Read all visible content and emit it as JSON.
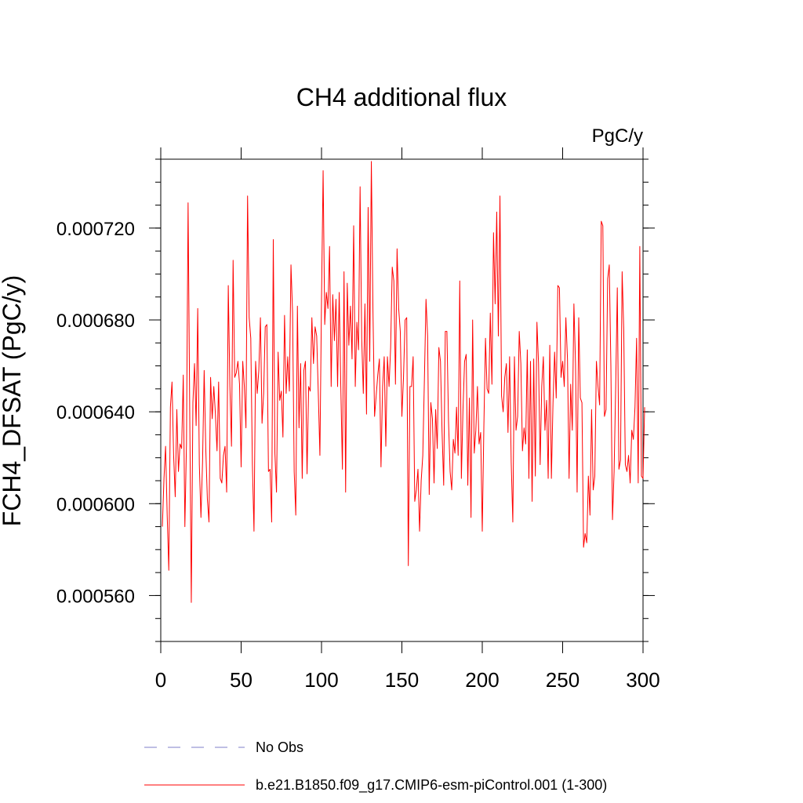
{
  "chart_data": {
    "type": "line",
    "title": "CH4 additional flux",
    "units": "PgC/y",
    "ylabel": "FCH4_DFSAT  (PgC/y)",
    "xlabel": "",
    "xlim": [
      0,
      300
    ],
    "ylim": [
      0.00054,
      0.00075
    ],
    "x_ticks": [
      0,
      50,
      100,
      150,
      200,
      250,
      300
    ],
    "x_tick_labels": [
      "0",
      "50",
      "100",
      "150",
      "200",
      "250",
      "300"
    ],
    "y_ticks": [
      0.00056,
      0.0006,
      0.00064,
      0.00068,
      0.00072
    ],
    "y_tick_labels": [
      "0.000560",
      "0.000600",
      "0.000640",
      "0.000680",
      "0.000720"
    ],
    "grid": false,
    "legend_position": "bottom",
    "legend": [
      {
        "label": "No Obs",
        "color": "#7f7fc8",
        "style": "dashed"
      },
      {
        "label": "b.e21.B1850.f09_g17.CMIP6-esm-piControl.001 (1-300)",
        "color": "#ff0000",
        "style": "solid"
      }
    ],
    "series": [
      {
        "name": "b.e21.B1850.f09_g17.CMIP6-esm-piControl.001 (1-300)",
        "color": "#ff0000",
        "x_start": 1,
        "x_step": 1,
        "values": [
          0.00059,
          0.000611,
          0.000625,
          0.000595,
          0.000571,
          0.000642,
          0.000653,
          0.000621,
          0.000603,
          0.000641,
          0.000614,
          0.000626,
          0.000624,
          0.000656,
          0.00059,
          0.000626,
          0.000731,
          0.000642,
          0.000557,
          0.000644,
          0.000661,
          0.000634,
          0.000685,
          0.000617,
          0.000594,
          0.000618,
          0.000658,
          0.000624,
          0.000602,
          0.000592,
          0.000655,
          0.000637,
          0.000651,
          0.000639,
          0.000623,
          0.000653,
          0.000611,
          0.000609,
          0.000621,
          0.000625,
          0.000605,
          0.000695,
          0.000651,
          0.000625,
          0.000706,
          0.000655,
          0.000657,
          0.000662,
          0.000652,
          0.000616,
          0.000662,
          0.000651,
          0.000633,
          0.000734,
          0.000681,
          0.000672,
          0.000617,
          0.000588,
          0.000662,
          0.000648,
          0.000658,
          0.000681,
          0.000635,
          0.000648,
          0.000677,
          0.000678,
          0.000614,
          0.000615,
          0.000592,
          0.000715,
          0.000622,
          0.000605,
          0.000666,
          0.000645,
          0.000649,
          0.000629,
          0.000682,
          0.000648,
          0.000664,
          0.000649,
          0.000704,
          0.000683,
          0.000614,
          0.000595,
          0.000686,
          0.000633,
          0.000661,
          0.000611,
          0.000658,
          0.000662,
          0.000613,
          0.000651,
          0.000649,
          0.000681,
          0.000661,
          0.000677,
          0.000673,
          0.000648,
          0.000621,
          0.000689,
          0.000745,
          0.000678,
          0.000692,
          0.000685,
          0.000712,
          0.000651,
          0.000691,
          0.000671,
          0.000689,
          0.000651,
          0.000692,
          0.000651,
          0.000615,
          0.000701,
          0.000605,
          0.000696,
          0.000669,
          0.000686,
          0.000663,
          0.000721,
          0.000651,
          0.000679,
          0.000667,
          0.000738,
          0.000672,
          0.000648,
          0.000687,
          0.000639,
          0.000729,
          0.000662,
          0.000749,
          0.000684,
          0.000638,
          0.000647,
          0.000656,
          0.000663,
          0.000616,
          0.000651,
          0.000664,
          0.000625,
          0.000664,
          0.000651,
          0.000668,
          0.000703,
          0.000697,
          0.000652,
          0.000711,
          0.000685,
          0.000675,
          0.000638,
          0.000655,
          0.00068,
          0.000681,
          0.000573,
          0.000651,
          0.000651,
          0.000664,
          0.000601,
          0.000606,
          0.000615,
          0.000588,
          0.00061,
          0.000621,
          0.000654,
          0.000689,
          0.000673,
          0.000604,
          0.000644,
          0.000637,
          0.000609,
          0.000641,
          0.000624,
          0.000668,
          0.000662,
          0.000631,
          0.000608,
          0.000675,
          0.000675,
          0.000636,
          0.000614,
          0.000606,
          0.000628,
          0.000622,
          0.000642,
          0.000621,
          0.000697,
          0.000611,
          0.000641,
          0.000662,
          0.000665,
          0.000608,
          0.000646,
          0.000594,
          0.00068,
          0.000622,
          0.000632,
          0.000651,
          0.000626,
          0.000631,
          0.000588,
          0.000634,
          0.000672,
          0.00065,
          0.000648,
          0.000683,
          0.000652,
          0.000718,
          0.000687,
          0.000727,
          0.000673,
          0.000734,
          0.000647,
          0.00064,
          0.000655,
          0.000661,
          0.000631,
          0.000664,
          0.000618,
          0.000592,
          0.000664,
          0.000632,
          0.000638,
          0.000675,
          0.000661,
          0.000623,
          0.000633,
          0.000626,
          0.000667,
          0.000611,
          0.000662,
          0.000601,
          0.000663,
          0.000612,
          0.000679,
          0.000661,
          0.000617,
          0.000651,
          0.000664,
          0.000632,
          0.000645,
          0.000611,
          0.000669,
          0.000611,
          0.000644,
          0.000666,
          0.000646,
          0.000695,
          0.000694,
          0.000655,
          0.000662,
          0.000651,
          0.000681,
          0.000663,
          0.000611,
          0.000652,
          0.000632,
          0.000687,
          0.000661,
          0.000605,
          0.000681,
          0.000646,
          0.000644,
          0.000581,
          0.000587,
          0.000583,
          0.000612,
          0.000595,
          0.000641,
          0.000606,
          0.000612,
          0.000662,
          0.000651,
          0.000643,
          0.000723,
          0.000721,
          0.000638,
          0.000641,
          0.000698,
          0.000704,
          0.00066,
          0.000593,
          0.000614,
          0.000651,
          0.000694,
          0.000615,
          0.000619,
          0.000701,
          0.000676,
          0.000617,
          0.000614,
          0.000621,
          0.000609,
          0.000632,
          0.000628,
          0.000642,
          0.000672,
          0.000609,
          0.000712,
          0.000612,
          0.000611,
          0.000642
        ]
      }
    ]
  }
}
